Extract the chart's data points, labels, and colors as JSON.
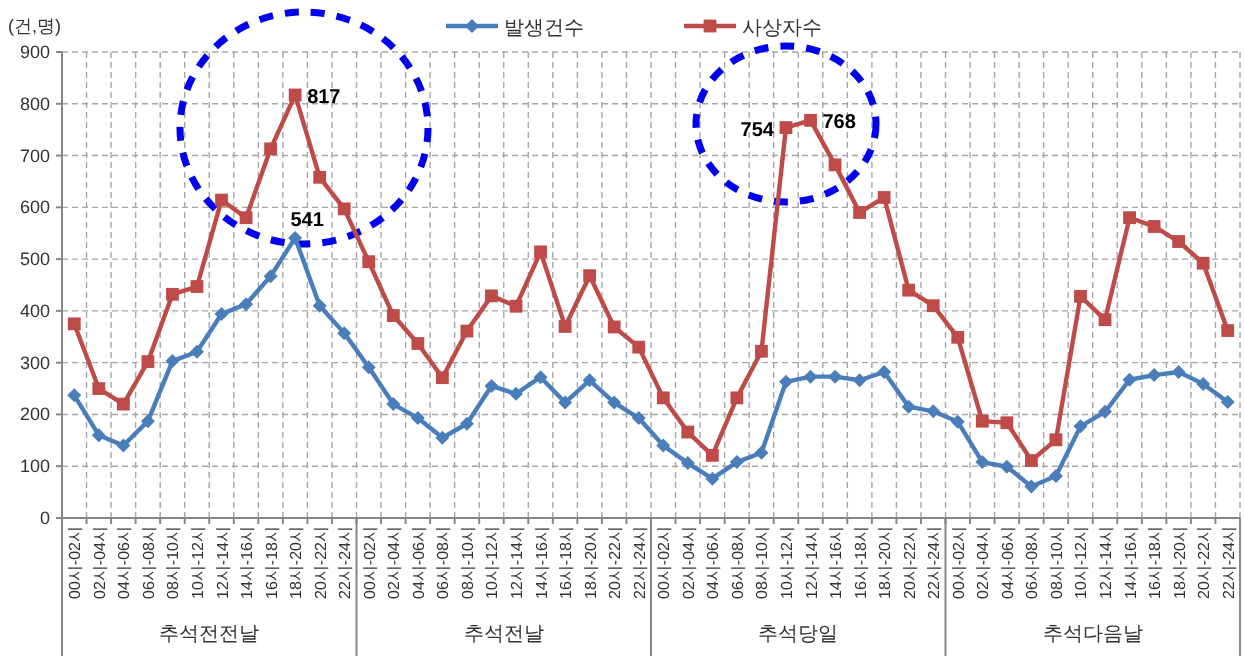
{
  "chart_data": {
    "type": "line",
    "ylabel": "(건,명)",
    "categories": [
      "00시-02시",
      "02시-04시",
      "04시-06시",
      "06시-08시",
      "08시-10시",
      "10시-12시",
      "12시-14시",
      "14시-16시",
      "16시-18시",
      "18시-20시",
      "20시-22시",
      "22시-24시",
      "00시-02시",
      "02시-04시",
      "04시-06시",
      "06시-08시",
      "08시-10시",
      "10시-12시",
      "12시-14시",
      "14시-16시",
      "16시-18시",
      "18시-20시",
      "20시-22시",
      "22시-24시",
      "00시-02시",
      "02시-04시",
      "04시-06시",
      "06시-08시",
      "08시-10시",
      "10시-12시",
      "12시-14시",
      "14시-16시",
      "16시-18시",
      "18시-20시",
      "20시-22시",
      "22시-24시",
      "00시-02시",
      "02시-04시",
      "04시-06시",
      "06시-08시",
      "08시-10시",
      "10시-12시",
      "12시-14시",
      "14시-16시",
      "16시-18시",
      "18시-20시",
      "20시-22시",
      "22시-24시"
    ],
    "annotations": [
      "추석전전날",
      "추석전날",
      "추석당일",
      "추석다음날"
    ],
    "series": [
      {
        "name": "발생건수",
        "color": "#4a7ebb",
        "marker": "diamond",
        "values": [
          237,
          160,
          140,
          187,
          303,
          321,
          394,
          413,
          467,
          541,
          410,
          357,
          291,
          220,
          193,
          155,
          182,
          255,
          240,
          272,
          223,
          266,
          223,
          193,
          140,
          106,
          76,
          108,
          126,
          263,
          273,
          273,
          266,
          282,
          215,
          206,
          186,
          108,
          99,
          61,
          81,
          177,
          205,
          267,
          276,
          282,
          259,
          224
        ],
        "value_labels": [
          null,
          null,
          null,
          null,
          null,
          null,
          null,
          null,
          null,
          "541",
          null,
          null,
          null,
          null,
          null,
          null,
          null,
          null,
          null,
          null,
          null,
          null,
          null,
          null,
          null,
          null,
          null,
          null,
          null,
          null,
          null,
          null,
          null,
          null,
          null,
          null,
          null,
          null,
          null,
          null,
          null,
          null,
          null,
          null,
          null,
          null,
          null,
          null
        ]
      },
      {
        "name": "사상자수",
        "color": "#be4b48",
        "marker": "square",
        "values": [
          375,
          250,
          220,
          302,
          432,
          447,
          614,
          580,
          713,
          817,
          658,
          597,
          495,
          391,
          337,
          271,
          361,
          429,
          409,
          514,
          370,
          468,
          369,
          330,
          232,
          166,
          121,
          232,
          322,
          754,
          768,
          682,
          590,
          619,
          440,
          410,
          349,
          187,
          184,
          111,
          151,
          428,
          383,
          580,
          563,
          534,
          492,
          362
        ],
        "value_labels": [
          null,
          null,
          null,
          null,
          null,
          null,
          null,
          null,
          null,
          "817",
          null,
          null,
          null,
          null,
          null,
          null,
          null,
          null,
          null,
          null,
          null,
          null,
          null,
          null,
          null,
          null,
          null,
          null,
          null,
          "754",
          "768",
          null,
          null,
          null,
          null,
          null,
          null,
          null,
          null,
          null,
          null,
          null,
          null,
          null,
          null,
          null,
          null,
          null
        ]
      }
    ],
    "ylim": [
      0,
      900
    ],
    "yticks": [
      0,
      100,
      200,
      300,
      400,
      500,
      600,
      700,
      800,
      900
    ],
    "grid": true,
    "legend": "top",
    "line_style": "solid"
  }
}
